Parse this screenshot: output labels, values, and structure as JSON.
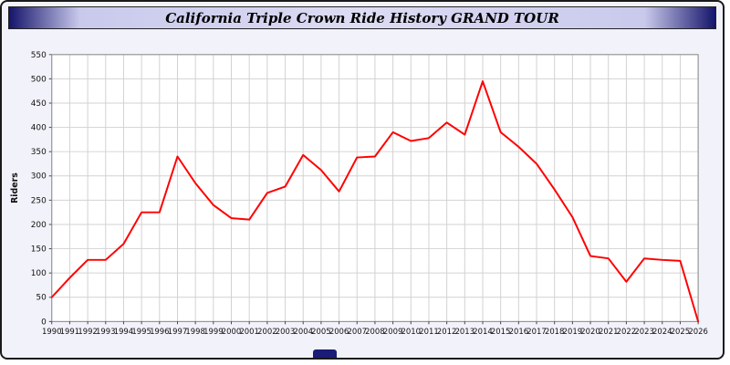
{
  "header": {
    "title": "California Triple Crown Ride History GRAND TOUR"
  },
  "colors": {
    "line": "#ff0000",
    "titlebar_navy": "#15156b",
    "titlebar_lavender": "#dcdcf4",
    "page_background": "#f2f2fb",
    "plot_background": "#ffffff",
    "gridline": "#d2d2d2"
  },
  "chart_data": {
    "type": "line",
    "title": "California Triple Crown Ride History GRAND TOUR",
    "xlabel": "",
    "ylabel": "Riders",
    "ylim": [
      0,
      550
    ],
    "ytick_step": 50,
    "grid": true,
    "legend": "none",
    "line_color": "#ff0000",
    "x": [
      1990,
      1991,
      1992,
      1993,
      1994,
      1995,
      1996,
      1997,
      1998,
      1999,
      2000,
      2001,
      2002,
      2003,
      2004,
      2005,
      2006,
      2007,
      2008,
      2009,
      2010,
      2011,
      2012,
      2013,
      2014,
      2015,
      2016,
      2017,
      2018,
      2019,
      2020,
      2021,
      2022,
      2023,
      2024,
      2025,
      2026
    ],
    "values": [
      50,
      90,
      127,
      127,
      160,
      225,
      225,
      340,
      285,
      240,
      213,
      210,
      265,
      278,
      343,
      312,
      268,
      338,
      340,
      390,
      372,
      378,
      410,
      385,
      495,
      390,
      360,
      325,
      272,
      215,
      135,
      130,
      82,
      130,
      127,
      125,
      0
    ]
  }
}
